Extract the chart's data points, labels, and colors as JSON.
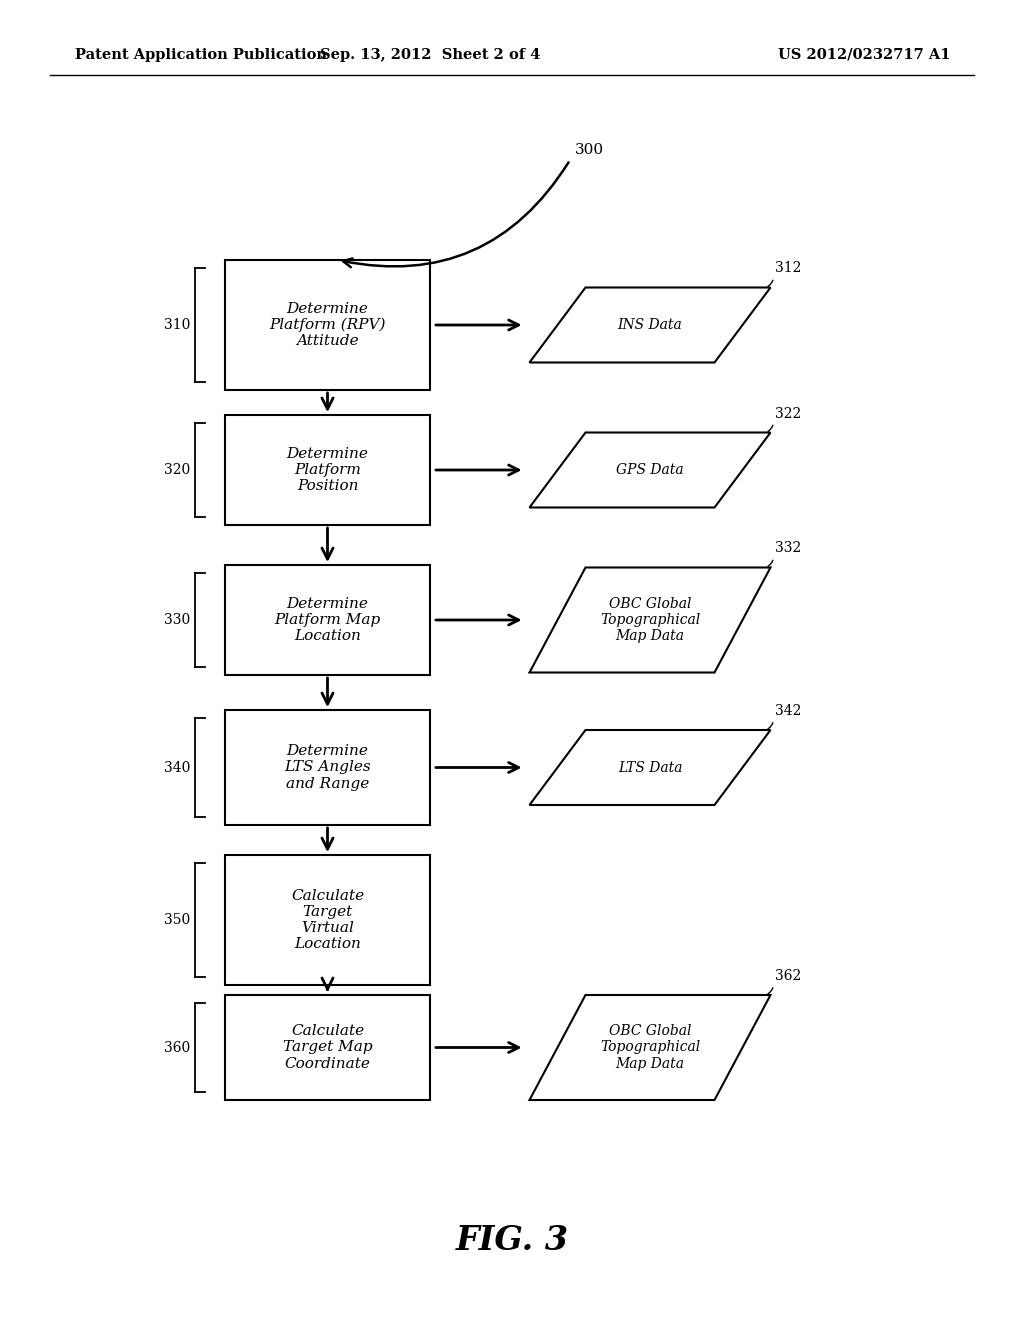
{
  "bg_color": "#ffffff",
  "header_left": "Patent Application Publication",
  "header_mid": "Sep. 13, 2012  Sheet 2 of 4",
  "header_right": "US 2012/0232717 A1",
  "fig_label": "FIG. 3",
  "diagram_label": "300",
  "box_ids": [
    "310",
    "320",
    "330",
    "340",
    "350",
    "360"
  ],
  "box_labels": {
    "310": "Determine\nPlatform (RPV)\nAttitude",
    "320": "Determine\nPlatform\nPosition",
    "330": "Determine\nPlatform Map\nLocation",
    "340": "Determine\nLTS Angles\nand Range",
    "350": "Calculate\nTarget\nVirtual\nLocation",
    "360": "Calculate\nTarget Map\nCoordinate"
  },
  "para_ids": [
    "312",
    "322",
    "332",
    "342",
    "362"
  ],
  "para_labels": {
    "312": "INS Data",
    "322": "GPS Data",
    "332": "OBC Global\nTopographical\nMap Data",
    "342": "LTS Data",
    "362": "OBC Global\nTopographical\nMap Data"
  },
  "para_box_map": {
    "312": "310",
    "322": "320",
    "332": "330",
    "342": "340",
    "362": "360"
  }
}
